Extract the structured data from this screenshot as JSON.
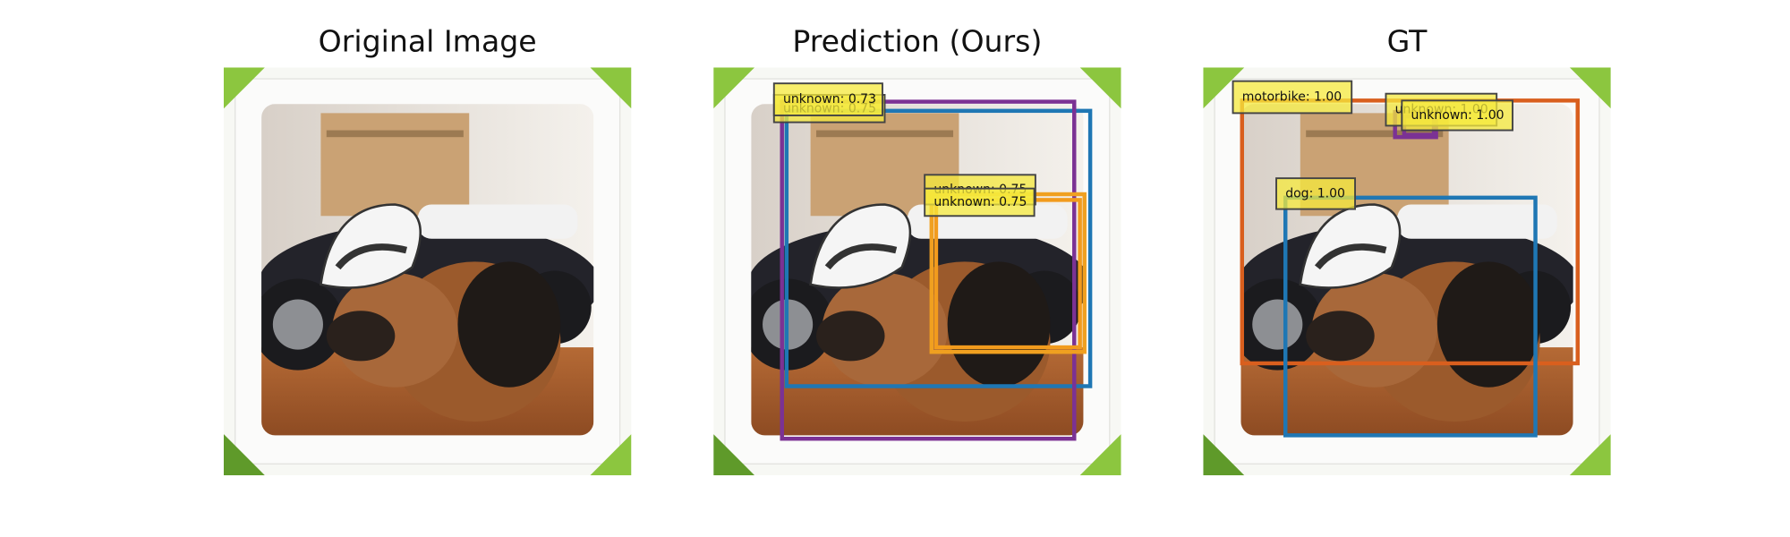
{
  "panels": [
    {
      "title": "Original Image",
      "boxes": []
    },
    {
      "title": "Prediction (Ours)",
      "boxes": [
        {
          "label": "unknown: 0.75",
          "color": "#1f77b4"
        },
        {
          "label": "unknown: 0.73",
          "color": "#7b3294"
        },
        {
          "label": "unknown: 0.75",
          "color": "#f0a020"
        },
        {
          "label": "unknown: 0.75",
          "color": "#f29b1d"
        }
      ]
    },
    {
      "title": "GT",
      "boxes": [
        {
          "label": "unknown: 1.00",
          "color": "#7b3294"
        },
        {
          "label": "unknown: 1.00",
          "color": "#7b3294"
        },
        {
          "label": "motorbike: 1.00",
          "color": "#d95f1e"
        },
        {
          "label": "dog: 1.00",
          "color": "#1f77b4"
        }
      ]
    }
  ]
}
